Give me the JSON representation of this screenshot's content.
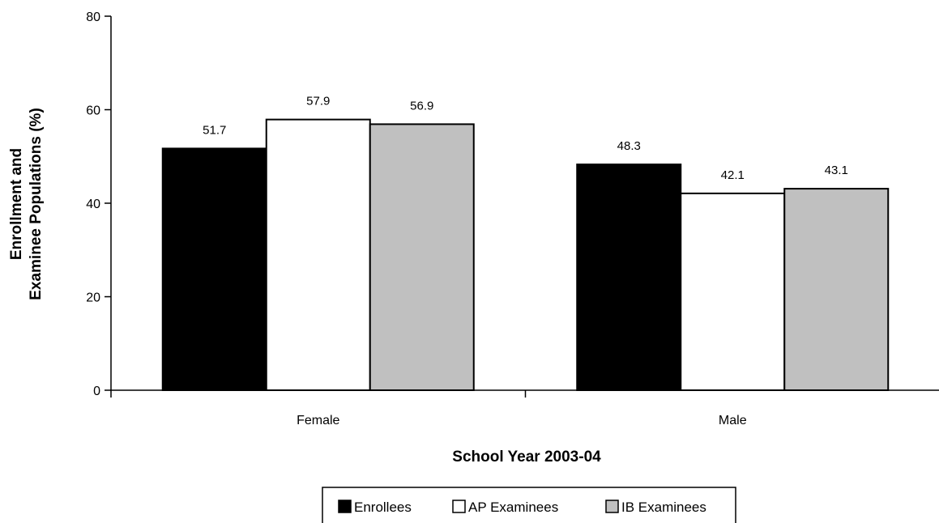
{
  "chart_data": {
    "type": "bar",
    "categories": [
      "Female",
      "Male"
    ],
    "series": [
      {
        "name": "Enrollees",
        "values": [
          51.7,
          48.3
        ],
        "color": "#000000"
      },
      {
        "name": "AP Examinees",
        "values": [
          57.9,
          42.1
        ],
        "color": "#ffffff"
      },
      {
        "name": "IB Examinees",
        "values": [
          56.9,
          43.1
        ],
        "color": "#c0c0c0"
      }
    ],
    "data_labels": [
      [
        "51.7",
        "48.3"
      ],
      [
        "57.9",
        "42.1"
      ],
      [
        "56.9",
        "43.1"
      ]
    ],
    "yticks": [
      "0",
      "20",
      "40",
      "60",
      "80"
    ],
    "ylim": [
      0,
      80
    ],
    "title": "",
    "xlabel": "School Year 2003-04",
    "ylabel_lines": [
      "Enrollment and",
      "Examinee Populations (%)"
    ],
    "grid": false,
    "legend_position": "bottom"
  }
}
